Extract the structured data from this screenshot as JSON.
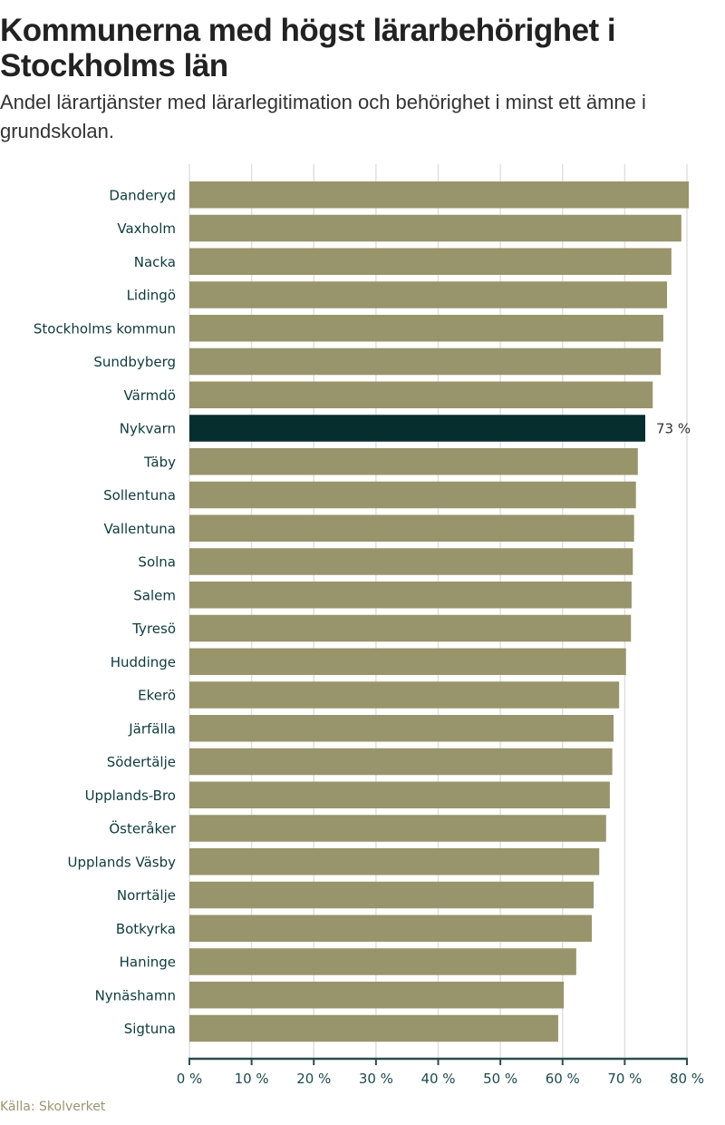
{
  "chart_data": {
    "type": "bar",
    "orientation": "horizontal",
    "title": "Kommunerna med högst lärarbehörighet i Stockholms län",
    "subtitle": "Andel lärartjänster med lärarlegitimation och behörighet i minst ett ämne i grundskolan.",
    "source": "Källa: Skolverket",
    "xlabel": "",
    "ylabel": "",
    "xlim": [
      0,
      80
    ],
    "grid": true,
    "ticks": [
      0,
      10,
      20,
      30,
      40,
      50,
      60,
      70,
      80
    ],
    "tick_labels": [
      "0 %",
      "10 %",
      "20 %",
      "30 %",
      "40 %",
      "50 %",
      "60 %",
      "70 %",
      "80 %"
    ],
    "categories": [
      "Danderyd",
      "Vaxholm",
      "Nacka",
      "Lidingö",
      "Stockholms kommun",
      "Sundbyberg",
      "Värmdö",
      "Nykvarn",
      "Täby",
      "Sollentuna",
      "Vallentuna",
      "Solna",
      "Salem",
      "Tyresö",
      "Huddinge",
      "Ekerö",
      "Järfälla",
      "Södertälje",
      "Upplands-Bro",
      "Österåker",
      "Upplands Väsby",
      "Norrtälje",
      "Botkyrka",
      "Haninge",
      "Nynäshamn",
      "Sigtuna"
    ],
    "values": [
      80.3,
      79.1,
      77.5,
      76.8,
      76.2,
      75.8,
      74.5,
      73.3,
      72.1,
      71.8,
      71.5,
      71.3,
      71.1,
      71.0,
      70.2,
      69.1,
      68.2,
      68.0,
      67.6,
      67.0,
      65.9,
      65.0,
      64.7,
      62.2,
      60.2,
      59.3
    ],
    "highlight": {
      "category": "Nykvarn",
      "label": "73 %"
    },
    "colors": {
      "bar": "#98946b",
      "highlight": "#062e2e",
      "grid": "#e0e0e0",
      "axis": "#2a4e4e"
    }
  }
}
